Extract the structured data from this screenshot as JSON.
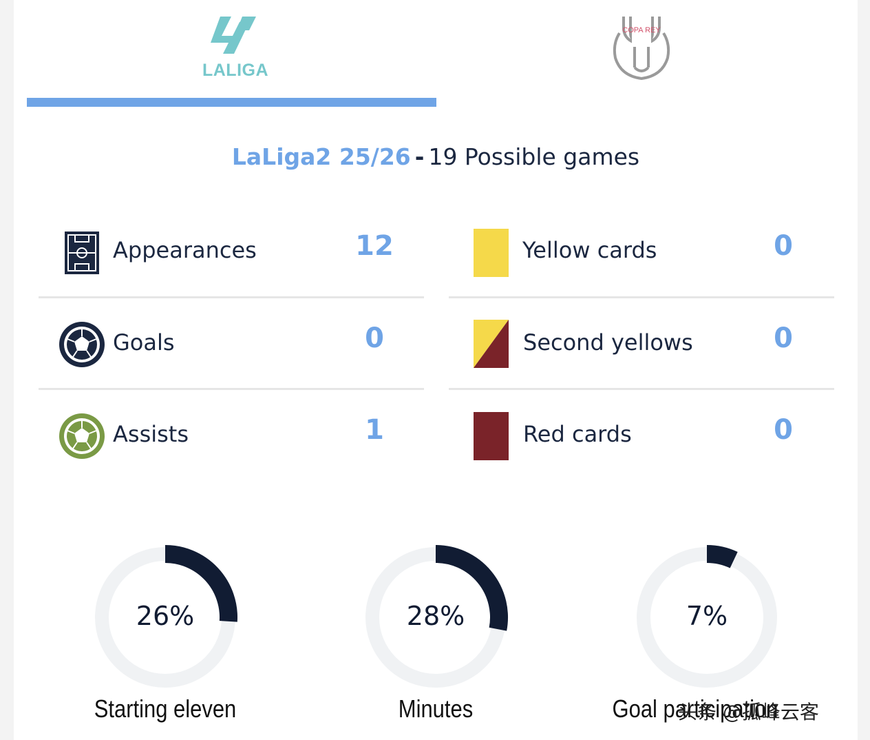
{
  "tabs": [
    {
      "label": "LALIGA",
      "selected": true
    },
    {
      "label": "COPA REY",
      "selected": false
    }
  ],
  "season": {
    "name": "LaLiga2 25/26",
    "separator": "-",
    "possible_games": "19 Possible games"
  },
  "stats_left": [
    {
      "icon": "pitch-icon",
      "label": "Appearances",
      "value": "12"
    },
    {
      "icon": "ball-icon",
      "label": "Goals",
      "value": "0"
    },
    {
      "icon": "ball-green-icon",
      "label": "Assists",
      "value": "1"
    }
  ],
  "stats_right": [
    {
      "icon": "yellow-card-icon",
      "label": "Yellow cards",
      "value": "0"
    },
    {
      "icon": "second-yellow-icon",
      "label": "Second yellows",
      "value": "0"
    },
    {
      "icon": "red-card-icon",
      "label": "Red cards",
      "value": "0"
    }
  ],
  "donuts": [
    {
      "label": "Starting eleven",
      "percent_text": "26%",
      "percent": 26
    },
    {
      "label": "Minutes",
      "percent_text": "28%",
      "percent": 28
    },
    {
      "label": "Goal participation",
      "percent_text": "7%",
      "percent": 7
    }
  ],
  "watermark": "头条 @孤峰云客",
  "colors": {
    "accent": "#6fa4e6",
    "navy": "#111c33",
    "yellow": "#f5d94a",
    "red": "#7a2329",
    "laliga": "#76c7cb",
    "assist_green": "#7a9a45"
  }
}
